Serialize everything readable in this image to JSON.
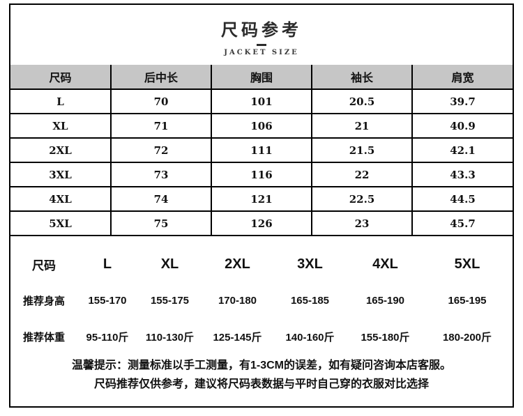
{
  "page": {
    "title": "尺码参考",
    "subtitle": "JACKET SIZE"
  },
  "size_table": {
    "headers": [
      "尺码",
      "后中长",
      "胸围",
      "袖长",
      "肩宽"
    ],
    "rows": [
      [
        "L",
        "70",
        "101",
        "20.5",
        "39.7"
      ],
      [
        "XL",
        "71",
        "106",
        "21",
        "40.9"
      ],
      [
        "2XL",
        "72",
        "111",
        "21.5",
        "42.1"
      ],
      [
        "3XL",
        "73",
        "116",
        "22",
        "43.3"
      ],
      [
        "4XL",
        "74",
        "121",
        "22.5",
        "44.5"
      ],
      [
        "5XL",
        "75",
        "126",
        "23",
        "45.7"
      ]
    ]
  },
  "recommendation": {
    "size_label": "尺码",
    "sizes": [
      "L",
      "XL",
      "2XL",
      "3XL",
      "4XL",
      "5XL"
    ],
    "height_label": "推荐身高",
    "heights": [
      "155-170",
      "155-175",
      "170-180",
      "165-185",
      "165-190",
      "165-195"
    ],
    "weight_label": "推荐体重",
    "weights": [
      "95-110斤",
      "110-130斤",
      "125-145斤",
      "140-160斤",
      "155-180斤",
      "180-200斤"
    ]
  },
  "notes": {
    "line1": "温馨提示：测量标准以手工测量，有1-3CM的误差，如有疑问咨询本店客服。",
    "line2": "尺码推荐仅供参考，建议将尺码表数据与平时自己穿的衣服对比选择"
  },
  "colors": {
    "header_bg": "#c6c6c6",
    "border": "#000000",
    "text": "#111111"
  }
}
